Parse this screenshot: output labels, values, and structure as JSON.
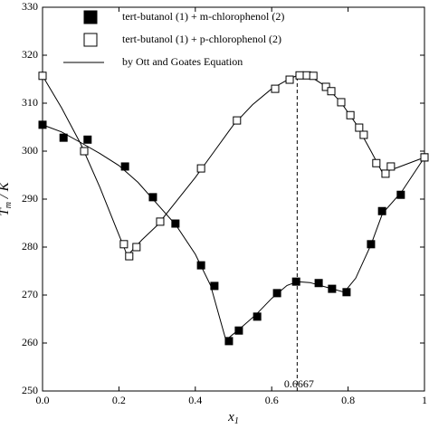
{
  "chart_data": {
    "type": "scatter",
    "x_label": {
      "main": "x",
      "sub": "1"
    },
    "y_label": {
      "main": "T",
      "sub": "m",
      "rest": " / K"
    },
    "xlim": [
      0,
      1
    ],
    "ylim": [
      250,
      330
    ],
    "xticks": [
      {
        "value": 0,
        "label": "0.0"
      },
      0.2,
      0.4,
      0.6,
      0.8,
      1
    ],
    "yticks": [
      250,
      260,
      270,
      280,
      290,
      300,
      310,
      320,
      330
    ],
    "vline": 0.6667,
    "legend": "upper left",
    "series": [
      {
        "name": "tert-butanol (1) + m-chlorophenol (2)",
        "color": "#000000",
        "marker": "filled",
        "x": [
          0,
          0.055,
          0.118,
          0.216,
          0.289,
          0.348,
          0.415,
          0.45,
          0.488,
          0.514,
          0.562,
          0.614,
          0.664,
          0.723,
          0.758,
          0.796,
          0.86,
          0.889,
          0.938,
          1.0
        ],
        "values": [
          305.5,
          302.8,
          302.4,
          296.8,
          290.4,
          284.9,
          276.2,
          271.9,
          260.4,
          262.6,
          265.5,
          270.4,
          272.8,
          272.5,
          271.3,
          270.6,
          280.6,
          287.5,
          290.9,
          298.7
        ]
      },
      {
        "name": "tert-butanol (1) + p-chlorophenol (2)",
        "color": "#000000",
        "marker": "open",
        "x": [
          0,
          0.109,
          0.213,
          0.227,
          0.246,
          0.308,
          0.415,
          0.509,
          0.609,
          0.647,
          0.673,
          0.692,
          0.709,
          0.742,
          0.756,
          0.782,
          0.806,
          0.829,
          0.841,
          0.874,
          0.898,
          0.912,
          1.0
        ],
        "values": [
          315.7,
          300.0,
          280.6,
          278.1,
          280.0,
          285.3,
          296.4,
          306.4,
          313.0,
          314.9,
          315.8,
          315.8,
          315.7,
          313.4,
          312.5,
          310.2,
          307.5,
          304.9,
          303.4,
          297.5,
          295.3,
          296.8,
          298.7
        ]
      },
      {
        "name": "by Ott and Goates Equation",
        "color": "#000000",
        "marker": "line",
        "x": [
          0,
          0.05,
          0.1,
          0.15,
          0.2,
          0.25,
          0.3,
          0.35,
          0.4,
          0.44,
          0.48,
          0.52,
          0.56,
          0.6,
          0.64,
          0.667,
          0.7,
          0.75,
          0.79,
          0.82,
          0.86,
          0.89,
          0.94,
          1,
          null,
          0,
          0.05,
          0.1,
          0.15,
          0.19,
          0.222,
          0.26,
          0.3,
          0.35,
          0.4,
          0.45,
          0.5,
          0.55,
          0.6,
          0.64,
          0.667,
          0.7,
          0.74,
          0.78,
          0.82,
          0.86,
          0.89,
          0.93,
          1
        ],
        "values": [
          305.5,
          304,
          301.8,
          299.5,
          297,
          293.5,
          289,
          284.5,
          278.5,
          272,
          260.6,
          263.2,
          266,
          269.3,
          272,
          272.8,
          272.6,
          271.5,
          270.6,
          273.5,
          280.5,
          287,
          291.5,
          298.7,
          null,
          315.7,
          309,
          301.5,
          292.5,
          284.5,
          278.2,
          281.5,
          284.5,
          289.5,
          294.5,
          300,
          305.5,
          309.7,
          313,
          314.8,
          315.8,
          315.6,
          313.6,
          310.3,
          305.8,
          300,
          295.5,
          296.6,
          298.7
        ]
      }
    ]
  }
}
